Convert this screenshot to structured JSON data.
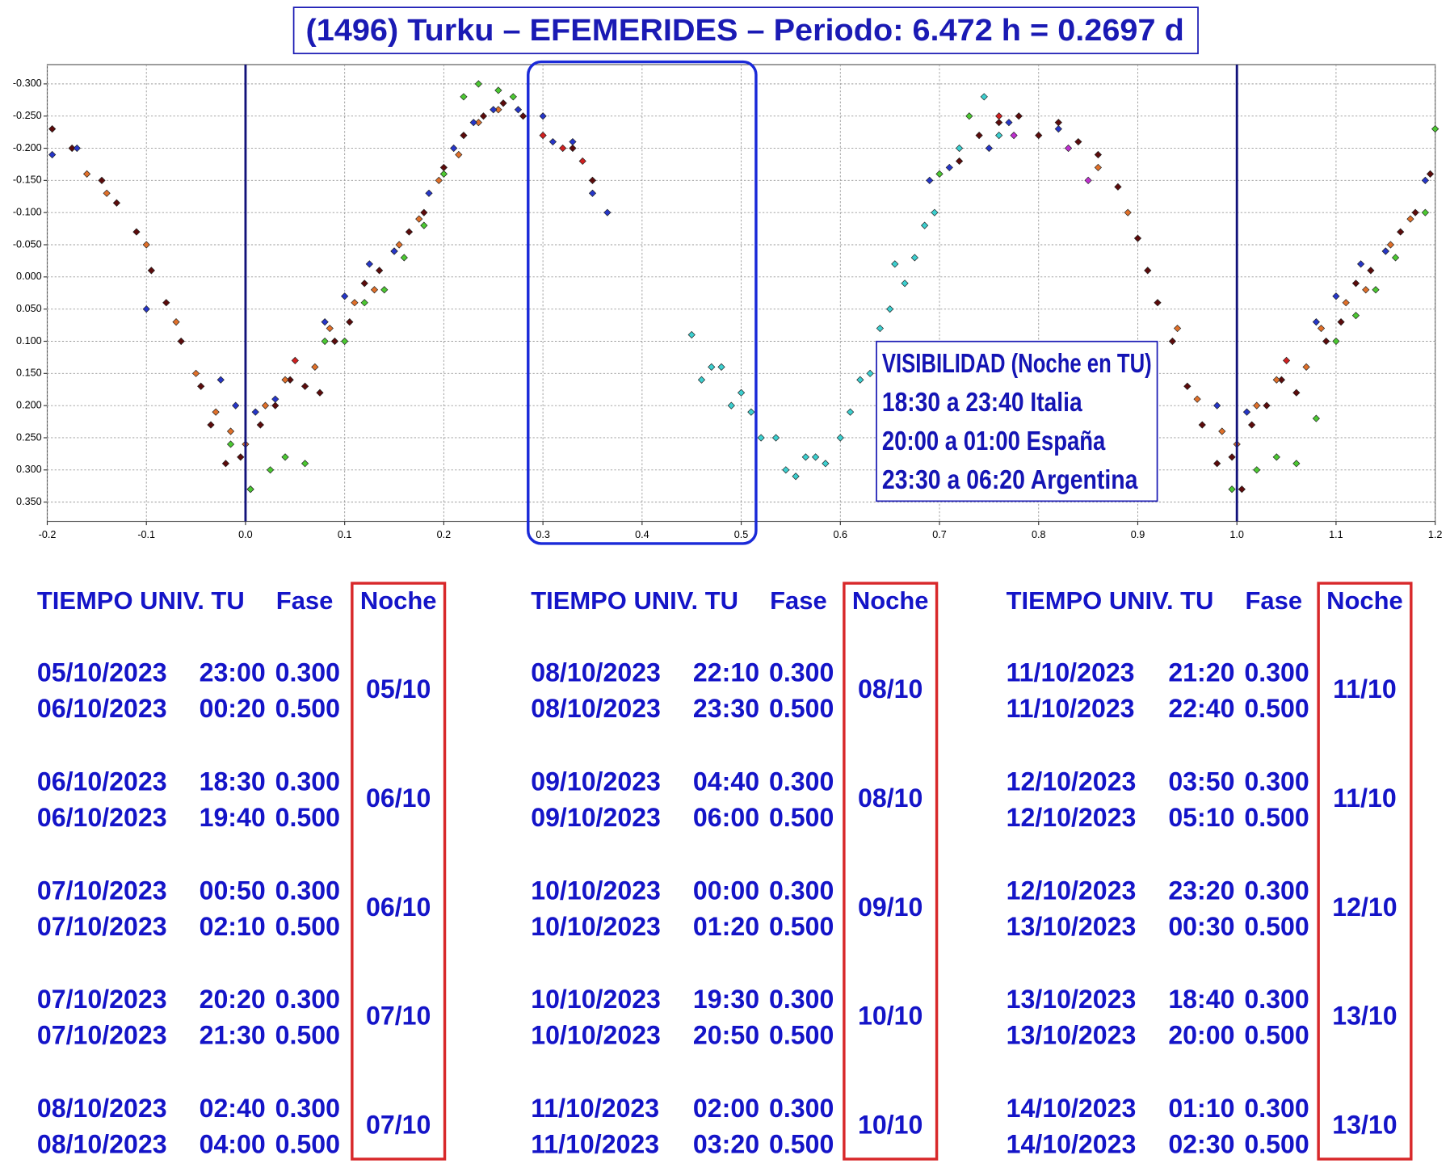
{
  "chart_data": {
    "type": "scatter",
    "title": "(1496) Turku – EFEMERIDES – Periodo: 6.472 h = 0.2697 d",
    "xlim": [
      -0.2,
      1.2
    ],
    "ylim": [
      -0.33,
      0.38
    ],
    "y_inverted": true,
    "grid": true,
    "xticks": [
      -0.2,
      -0.1,
      {
        "value": 0,
        "label": "0.0"
      },
      0.1,
      0.2,
      0.3,
      0.4,
      0.5,
      0.6,
      0.7,
      0.8,
      0.9,
      {
        "value": 1,
        "label": "1.0"
      },
      1.1,
      1.2
    ],
    "yticks": [
      {
        "value": -0.3,
        "label": "-0.300"
      },
      {
        "value": -0.25,
        "label": "-0.250"
      },
      {
        "value": -0.2,
        "label": "-0.200"
      },
      {
        "value": -0.15,
        "label": "-0.150"
      },
      {
        "value": -0.1,
        "label": "-0.100"
      },
      {
        "value": -0.05,
        "label": "-0.050"
      },
      {
        "value": 0,
        "label": "0.000"
      },
      {
        "value": 0.05,
        "label": "0.050"
      },
      {
        "value": 0.1,
        "label": "0.100"
      },
      {
        "value": 0.15,
        "label": "0.150"
      },
      {
        "value": 0.2,
        "label": "0.200"
      },
      {
        "value": 0.25,
        "label": "0.250"
      },
      {
        "value": 0.3,
        "label": "0.300"
      },
      {
        "value": 0.35,
        "label": "0.350"
      }
    ],
    "vlines": [
      0,
      1
    ],
    "vline_color": "#12127a",
    "highlight_range": [
      0.3,
      0.5
    ],
    "highlight_color": "#1a2ad8",
    "annotations": [
      "VISIBILIDAD (Noche en TU)",
      "18:30 a 23:40 Italia",
      "20:00 a 01:00 España",
      "23:30 a 06:20 Argentina"
    ],
    "series": [
      {
        "color": "#5c0b0b",
        "x": [
          -0.195,
          -0.175,
          -0.145,
          -0.13,
          -0.11,
          -0.095,
          -0.08,
          -0.065,
          -0.045,
          -0.035,
          -0.02,
          -0.005,
          0.005,
          0.015,
          0.03,
          0.045,
          0.06,
          0.075,
          0.09,
          0.105,
          0.12,
          0.135,
          0.15,
          0.165,
          0.18,
          0.2,
          0.22,
          0.24,
          0.26,
          0.28,
          0.33,
          0.35,
          0.72,
          0.74,
          0.76,
          0.78,
          0.8,
          0.82,
          0.84,
          0.86,
          0.88,
          0.9,
          0.91,
          0.92,
          0.935,
          0.95,
          0.965,
          0.98,
          0.995,
          1.005,
          1.015,
          1.03,
          1.045,
          1.06,
          1.09,
          1.105,
          1.12,
          1.135,
          1.15,
          1.165,
          1.18,
          1.195
        ],
        "values": [
          -0.23,
          -0.2,
          -0.15,
          -0.115,
          -0.07,
          -0.01,
          0.04,
          0.1,
          0.17,
          0.23,
          0.29,
          0.28,
          0.33,
          0.23,
          0.2,
          0.16,
          0.17,
          0.18,
          0.1,
          0.07,
          0.01,
          -0.01,
          -0.04,
          -0.07,
          -0.1,
          -0.17,
          -0.22,
          -0.25,
          -0.27,
          -0.25,
          -0.2,
          -0.15,
          -0.18,
          -0.22,
          -0.24,
          -0.25,
          -0.22,
          -0.24,
          -0.21,
          -0.19,
          -0.14,
          -0.06,
          -0.01,
          0.04,
          0.1,
          0.17,
          0.23,
          0.29,
          0.28,
          0.33,
          0.23,
          0.2,
          0.16,
          0.18,
          0.1,
          0.07,
          0.01,
          -0.01,
          -0.04,
          -0.07,
          -0.1,
          -0.16
        ]
      },
      {
        "color": "#e0702a",
        "x": [
          -0.16,
          -0.14,
          -0.1,
          -0.07,
          -0.05,
          -0.03,
          -0.015,
          0,
          0.02,
          0.04,
          0.07,
          0.085,
          0.11,
          0.13,
          0.155,
          0.175,
          0.195,
          0.215,
          0.235,
          0.255,
          0.86,
          0.89,
          0.94,
          0.96,
          0.985,
          1,
          1.02,
          1.04,
          1.07,
          1.085,
          1.11,
          1.13,
          1.155,
          1.175
        ],
        "values": [
          -0.16,
          -0.13,
          -0.05,
          0.07,
          0.15,
          0.21,
          0.24,
          0.26,
          0.2,
          0.16,
          0.14,
          0.08,
          0.04,
          0.02,
          -0.05,
          -0.09,
          -0.15,
          -0.19,
          -0.24,
          -0.26,
          -0.17,
          -0.1,
          0.08,
          0.19,
          0.24,
          0.26,
          0.2,
          0.16,
          0.14,
          0.08,
          0.04,
          0.02,
          -0.05,
          -0.09
        ]
      },
      {
        "color": "#4cc832",
        "x": [
          -0.015,
          0.005,
          0.025,
          0.04,
          0.06,
          0.08,
          0.1,
          0.12,
          0.14,
          0.16,
          0.18,
          0.2,
          0.22,
          0.235,
          0.255,
          0.27,
          0.7,
          0.73,
          0.995,
          1.02,
          1.04,
          1.06,
          1.08,
          1.1,
          1.12,
          1.14,
          1.16,
          1.19,
          1.2
        ],
        "values": [
          0.26,
          0.33,
          0.3,
          0.28,
          0.29,
          0.1,
          0.1,
          0.04,
          0.02,
          -0.03,
          -0.08,
          -0.16,
          -0.28,
          -0.3,
          -0.29,
          -0.28,
          -0.16,
          -0.25,
          0.33,
          0.3,
          0.28,
          0.29,
          0.22,
          0.1,
          0.06,
          0.02,
          -0.03,
          -0.1,
          -0.23
        ]
      },
      {
        "color": "#2636c8",
        "x": [
          -0.195,
          -0.17,
          -0.1,
          -0.025,
          -0.01,
          0.01,
          0.03,
          0.08,
          0.1,
          0.125,
          0.15,
          0.185,
          0.21,
          0.23,
          0.25,
          0.275,
          0.3,
          0.31,
          0.33,
          0.35,
          0.365,
          0.69,
          0.71,
          0.75,
          0.77,
          0.82,
          0.98,
          1.01,
          1.08,
          1.1,
          1.125,
          1.15,
          1.19
        ],
        "values": [
          -0.19,
          -0.2,
          0.05,
          0.16,
          0.2,
          0.21,
          0.19,
          0.07,
          0.03,
          -0.02,
          -0.04,
          -0.13,
          -0.2,
          -0.24,
          -0.26,
          -0.26,
          -0.25,
          -0.21,
          -0.21,
          -0.13,
          -0.1,
          -0.15,
          -0.17,
          -0.2,
          -0.24,
          -0.23,
          0.2,
          0.21,
          0.07,
          0.03,
          -0.02,
          -0.04,
          -0.15
        ]
      },
      {
        "color": "#3ccfcf",
        "x": [
          0.45,
          0.46,
          0.47,
          0.48,
          0.49,
          0.5,
          0.51,
          0.52,
          0.535,
          0.545,
          0.555,
          0.565,
          0.575,
          0.585,
          0.6,
          0.61,
          0.62,
          0.63,
          0.64,
          0.65,
          0.655,
          0.665,
          0.675,
          0.685,
          0.695,
          0.72,
          0.745,
          0.76
        ],
        "values": [
          0.09,
          0.16,
          0.14,
          0.14,
          0.2,
          0.18,
          0.21,
          0.25,
          0.25,
          0.3,
          0.31,
          0.28,
          0.28,
          0.29,
          0.25,
          0.21,
          0.16,
          0.15,
          0.08,
          0.05,
          -0.02,
          0.01,
          -0.03,
          -0.08,
          -0.1,
          -0.2,
          -0.28,
          -0.22
        ]
      },
      {
        "color": "#c030d0",
        "x": [
          0.775,
          0.83,
          0.85
        ],
        "values": [
          -0.22,
          -0.2,
          -0.15
        ]
      },
      {
        "color": "#d02020",
        "x": [
          0.3,
          0.32,
          0.34,
          0.05,
          1.05,
          0.76
        ],
        "values": [
          -0.22,
          -0.2,
          -0.18,
          0.13,
          0.13,
          -0.25
        ]
      }
    ]
  },
  "tables": [
    {
      "headers": [
        "TIEMPO UNIV. TU",
        "Fase",
        "Noche"
      ],
      "rows": [
        {
          "lines": [
            [
              "05/10/2023",
              "23:00",
              "0.300"
            ],
            [
              "06/10/2023",
              "00:20",
              "0.500"
            ]
          ],
          "noche": "05/10"
        },
        {
          "lines": [
            [
              "06/10/2023",
              "18:30",
              "0.300"
            ],
            [
              "06/10/2023",
              "19:40",
              "0.500"
            ]
          ],
          "noche": "06/10"
        },
        {
          "lines": [
            [
              "07/10/2023",
              "00:50",
              "0.300"
            ],
            [
              "07/10/2023",
              "02:10",
              "0.500"
            ]
          ],
          "noche": "06/10"
        },
        {
          "lines": [
            [
              "07/10/2023",
              "20:20",
              "0.300"
            ],
            [
              "07/10/2023",
              "21:30",
              "0.500"
            ]
          ],
          "noche": "07/10"
        },
        {
          "lines": [
            [
              "08/10/2023",
              "02:40",
              "0.300"
            ],
            [
              "08/10/2023",
              "04:00",
              "0.500"
            ]
          ],
          "noche": "07/10"
        }
      ]
    },
    {
      "headers": [
        "TIEMPO UNIV. TU",
        "Fase",
        "Noche"
      ],
      "rows": [
        {
          "lines": [
            [
              "08/10/2023",
              "22:10",
              "0.300"
            ],
            [
              "08/10/2023",
              "23:30",
              "0.500"
            ]
          ],
          "noche": "08/10"
        },
        {
          "lines": [
            [
              "09/10/2023",
              "04:40",
              "0.300"
            ],
            [
              "09/10/2023",
              "06:00",
              "0.500"
            ]
          ],
          "noche": "08/10"
        },
        {
          "lines": [
            [
              "10/10/2023",
              "00:00",
              "0.300"
            ],
            [
              "10/10/2023",
              "01:20",
              "0.500"
            ]
          ],
          "noche": "09/10"
        },
        {
          "lines": [
            [
              "10/10/2023",
              "19:30",
              "0.300"
            ],
            [
              "10/10/2023",
              "20:50",
              "0.500"
            ]
          ],
          "noche": "10/10"
        },
        {
          "lines": [
            [
              "11/10/2023",
              "02:00",
              "0.300"
            ],
            [
              "11/10/2023",
              "03:20",
              "0.500"
            ]
          ],
          "noche": "10/10"
        }
      ]
    },
    {
      "headers": [
        "TIEMPO UNIV. TU",
        "Fase",
        "Noche"
      ],
      "rows": [
        {
          "lines": [
            [
              "11/10/2023",
              "21:20",
              "0.300"
            ],
            [
              "11/10/2023",
              "22:40",
              "0.500"
            ]
          ],
          "noche": "11/10"
        },
        {
          "lines": [
            [
              "12/10/2023",
              "03:50",
              "0.300"
            ],
            [
              "12/10/2023",
              "05:10",
              "0.500"
            ]
          ],
          "noche": "11/10"
        },
        {
          "lines": [
            [
              "12/10/2023",
              "23:20",
              "0.300"
            ],
            [
              "13/10/2023",
              "00:30",
              "0.500"
            ]
          ],
          "noche": "12/10"
        },
        {
          "lines": [
            [
              "13/10/2023",
              "18:40",
              "0.300"
            ],
            [
              "13/10/2023",
              "20:00",
              "0.500"
            ]
          ],
          "noche": "13/10"
        },
        {
          "lines": [
            [
              "14/10/2023",
              "01:10",
              "0.300"
            ],
            [
              "14/10/2023",
              "02:30",
              "0.500"
            ]
          ],
          "noche": "13/10"
        }
      ]
    }
  ]
}
